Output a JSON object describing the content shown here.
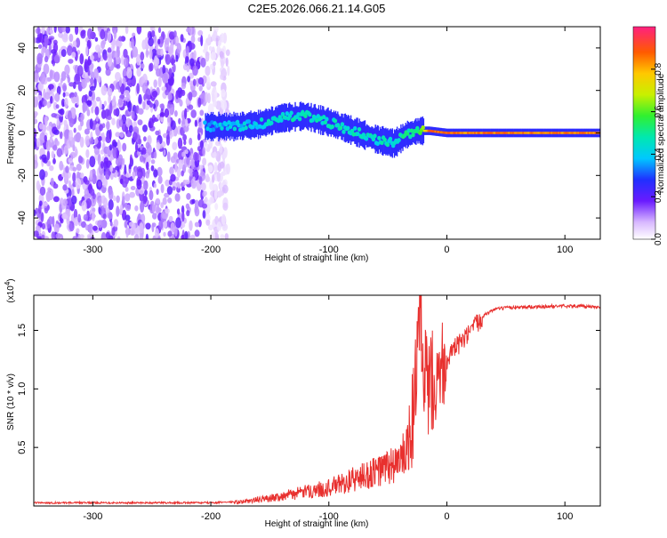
{
  "figure": {
    "title": "C2E5.2026.066.21.14.G05"
  },
  "chart_data": [
    {
      "type": "heatmap",
      "title": "C2E5.2026.066.21.14.G05",
      "xlabel": "Height of straight line (km)",
      "ylabel": "Frequency (Hz)",
      "xlim": [
        -350,
        130
      ],
      "ylim": [
        -50,
        50
      ],
      "xticks": [
        -300,
        -200,
        -100,
        0,
        100
      ],
      "xtick_labels": [
        "-300",
        "-200",
        "-100",
        "0",
        "100"
      ],
      "yticks": [
        -40,
        -20,
        0,
        20,
        40
      ],
      "ytick_labels": [
        "-40",
        "-20",
        "0",
        "20",
        "40"
      ],
      "colorbar": {
        "label": "Normalized spectral amplitude",
        "range": [
          0,
          1
        ],
        "ticks": [
          0.0,
          0.2,
          0.4,
          0.6,
          0.8
        ],
        "tick_labels": [
          "0.0",
          "0.2",
          "0.4",
          "0.6",
          "0.8"
        ],
        "colormap": "rainbow"
      },
      "noise_region": {
        "x_range": [
          -350,
          -205
        ],
        "freq_range": [
          -50,
          50
        ],
        "amplitude": 0.1
      },
      "signal_track": [
        {
          "x": -205,
          "freq": 3,
          "amplitude": 0.35
        },
        {
          "x": -180,
          "freq": 3,
          "amplitude": 0.4
        },
        {
          "x": -160,
          "freq": 4,
          "amplitude": 0.4
        },
        {
          "x": -140,
          "freq": 7,
          "amplitude": 0.45
        },
        {
          "x": -120,
          "freq": 8,
          "amplitude": 0.45
        },
        {
          "x": -100,
          "freq": 5,
          "amplitude": 0.45
        },
        {
          "x": -80,
          "freq": 1,
          "amplitude": 0.45
        },
        {
          "x": -60,
          "freq": -3,
          "amplitude": 0.45
        },
        {
          "x": -45,
          "freq": -5,
          "amplitude": 0.45
        },
        {
          "x": -35,
          "freq": -1,
          "amplitude": 0.5
        },
        {
          "x": -25,
          "freq": 1,
          "amplitude": 0.5
        },
        {
          "x": -15,
          "freq": 1,
          "amplitude": 0.9
        },
        {
          "x": 0,
          "freq": 0,
          "amplitude": 0.85
        },
        {
          "x": 20,
          "freq": 0,
          "amplitude": 0.85
        },
        {
          "x": 60,
          "freq": 0,
          "amplitude": 0.85
        },
        {
          "x": 100,
          "freq": 0,
          "amplitude": 0.85
        },
        {
          "x": 130,
          "freq": 0,
          "amplitude": 0.85
        }
      ]
    },
    {
      "type": "line",
      "xlabel": "Height of straight line (km)",
      "ylabel": "SNR (10 * v/v)",
      "y_scale_label": "(x10",
      "y_scale_exponent": "4",
      "xlim": [
        -350,
        130
      ],
      "ylim": [
        0,
        1.8
      ],
      "xticks": [
        -300,
        -200,
        -100,
        0,
        100
      ],
      "xtick_labels": [
        "-300",
        "-200",
        "-100",
        "0",
        "100"
      ],
      "yticks": [
        0.5,
        1.0,
        1.5
      ],
      "ytick_labels": [
        "0.5",
        "1.0",
        "1.5"
      ],
      "series_color": "#e8302e",
      "series": [
        {
          "x": [
            -350,
            -300,
            -250,
            -200,
            -175,
            -150,
            -125,
            -100,
            -80,
            -60,
            -50,
            -40,
            -35,
            -30,
            -28,
            -25,
            -22,
            -20,
            -18,
            -15,
            -10,
            -5,
            0,
            5,
            10,
            15,
            20,
            25,
            30,
            40,
            50,
            60,
            80,
            100,
            130
          ],
          "y": [
            0.02,
            0.02,
            0.02,
            0.02,
            0.03,
            0.06,
            0.1,
            0.14,
            0.2,
            0.26,
            0.3,
            0.34,
            0.4,
            0.6,
            0.9,
            1.3,
            1.55,
            0.9,
            1.1,
            1.0,
            1.15,
            1.2,
            1.25,
            1.32,
            1.38,
            1.42,
            1.48,
            1.55,
            1.62,
            1.68,
            1.69,
            1.7,
            1.7,
            1.71,
            1.7
          ]
        }
      ]
    }
  ]
}
